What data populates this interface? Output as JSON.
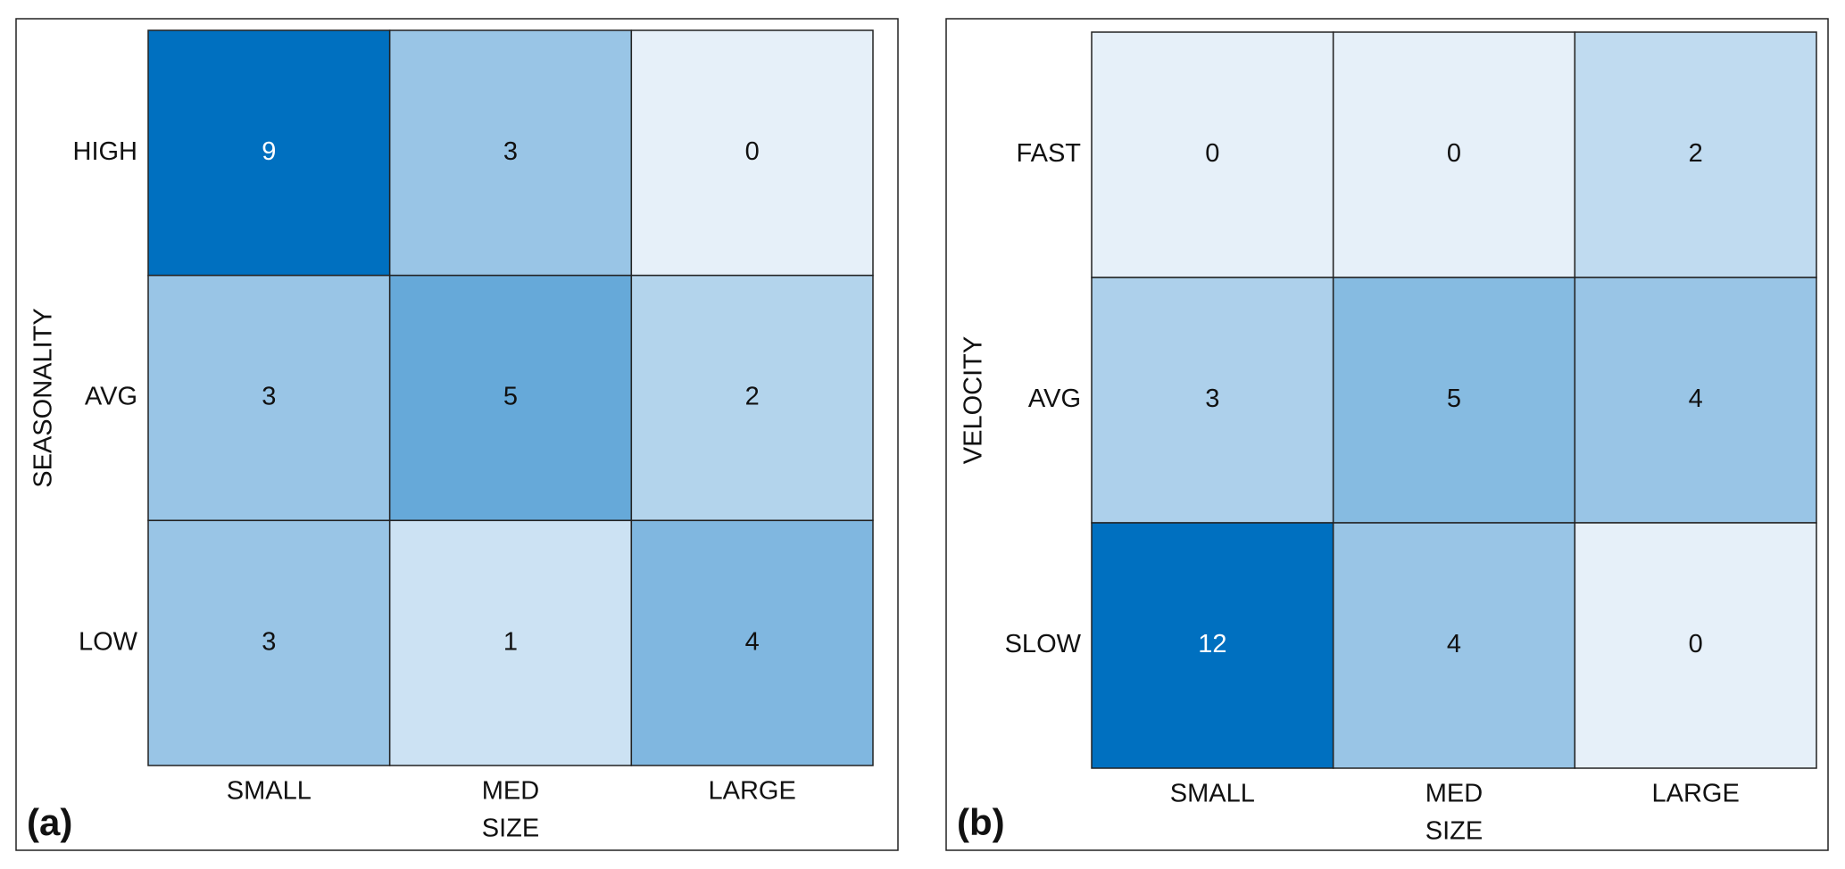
{
  "chart_data": [
    {
      "type": "heatmap",
      "panel_label": "(a)",
      "x_label": "SIZE",
      "y_label": "SEASONALITY",
      "x_categories": [
        "SMALL",
        "MED",
        "LARGE"
      ],
      "y_categories": [
        "HIGH",
        "AVG",
        "LOW"
      ],
      "values": [
        [
          9,
          3,
          0
        ],
        [
          3,
          5,
          2
        ],
        [
          3,
          1,
          4
        ]
      ],
      "colorscale": [
        "#e6f0f9",
        "#0070c0"
      ]
    },
    {
      "type": "heatmap",
      "panel_label": "(b)",
      "x_label": "SIZE",
      "y_label": "VELOCITY",
      "x_categories": [
        "SMALL",
        "MED",
        "LARGE"
      ],
      "y_categories": [
        "FAST",
        "AVG",
        "SLOW"
      ],
      "values": [
        [
          0,
          0,
          2
        ],
        [
          3,
          5,
          4
        ],
        [
          12,
          4,
          0
        ]
      ],
      "colorscale": [
        "#e6f0f9",
        "#0070c0"
      ]
    }
  ]
}
